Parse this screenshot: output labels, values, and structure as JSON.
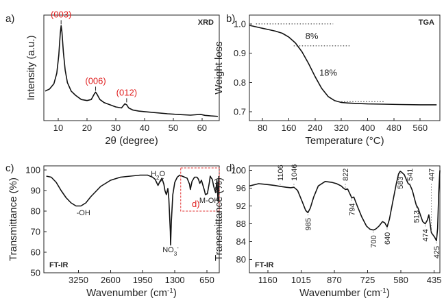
{
  "chart_data": [
    {
      "panel": "a)",
      "tag": "XRD",
      "type": "line",
      "xlabel": "2θ (degree)",
      "ylabel": "Intensity (a.u.)",
      "xlim": [
        5,
        66
      ],
      "xticks": [
        10,
        20,
        30,
        40,
        50,
        60
      ],
      "ylim": [
        0,
        1
      ],
      "x": [
        5.5,
        7,
        8.5,
        9.5,
        10.2,
        10.7,
        11.0,
        11.3,
        11.8,
        12.4,
        13.2,
        14.5,
        16,
        18,
        20,
        21.5,
        22.5,
        23.0,
        23.5,
        24.5,
        26,
        28,
        30,
        32,
        33.2,
        33.8,
        34.5,
        36,
        38,
        40,
        44,
        48,
        52,
        56,
        59.5,
        61,
        63,
        65.5
      ],
      "series": [
        {
          "values": [
            0.28,
            0.3,
            0.35,
            0.45,
            0.62,
            0.82,
            0.9,
            0.84,
            0.65,
            0.48,
            0.36,
            0.28,
            0.24,
            0.2,
            0.19,
            0.2,
            0.25,
            0.27,
            0.25,
            0.2,
            0.17,
            0.15,
            0.13,
            0.12,
            0.16,
            0.15,
            0.12,
            0.1,
            0.09,
            0.085,
            0.075,
            0.065,
            0.058,
            0.052,
            0.06,
            0.05,
            0.045,
            0.04
          ]
        }
      ],
      "annotations": [
        {
          "text": "(003)",
          "x": 11.0,
          "y": 0.9
        },
        {
          "text": "(006)",
          "x": 23.0,
          "y": 0.27
        },
        {
          "text": "(012)",
          "x": 33.8,
          "y": 0.16
        }
      ]
    },
    {
      "panel": "b)",
      "tag": "TGA",
      "type": "line",
      "xlabel": "Temperature (°C)",
      "ylabel": "Weight loss",
      "xlim": [
        40,
        620
      ],
      "xticks": [
        80,
        160,
        240,
        320,
        400,
        480,
        560
      ],
      "ylim": [
        0.67,
        1.03
      ],
      "yticks": [
        "1.0",
        "0.9",
        "0.8",
        "0.7"
      ],
      "ytick_values": [
        1.0,
        0.9,
        0.8,
        0.7
      ],
      "x": [
        40,
        60,
        80,
        100,
        120,
        140,
        160,
        180,
        200,
        220,
        240,
        260,
        280,
        300,
        320,
        340,
        360,
        400,
        450,
        500,
        560,
        610
      ],
      "series": [
        {
          "values": [
            0.995,
            0.99,
            0.985,
            0.98,
            0.975,
            0.968,
            0.955,
            0.935,
            0.905,
            0.865,
            0.82,
            0.78,
            0.752,
            0.738,
            0.732,
            0.73,
            0.729,
            0.727,
            0.726,
            0.725,
            0.724,
            0.724
          ]
        }
      ],
      "guides": [
        {
          "x1": 60,
          "x2": 295,
          "y": 1.0
        },
        {
          "x1": 175,
          "x2": 350,
          "y": 0.925
        },
        {
          "x1": 320,
          "x2": 450,
          "y": 0.735
        }
      ],
      "annotations": [
        {
          "text": "8%",
          "x": 230,
          "y": 0.96
        },
        {
          "text": "18%",
          "x": 280,
          "y": 0.835
        }
      ]
    },
    {
      "panel": "c)",
      "tag": "FT-IR",
      "type": "line",
      "xlabel": "Wavenumber (cm",
      "xlabel_sup": "-1",
      "xlabel_tail": ")",
      "ylabel": "Transmittance (%)",
      "xlim": [
        3950,
        400
      ],
      "xticks": [
        "3250",
        "2600",
        "1950",
        "1300",
        "650"
      ],
      "xtick_values": [
        3250,
        2600,
        1950,
        1300,
        650
      ],
      "ylim": [
        50,
        102
      ],
      "yticks": [
        50,
        60,
        70,
        80,
        90,
        100
      ],
      "x": [
        3900,
        3800,
        3700,
        3600,
        3500,
        3400,
        3300,
        3200,
        3100,
        3000,
        2800,
        2600,
        2400,
        2200,
        2000,
        1850,
        1750,
        1700,
        1640,
        1600,
        1560,
        1520,
        1500,
        1470,
        1440,
        1420,
        1390,
        1384,
        1370,
        1340,
        1300,
        1250,
        1200,
        1150,
        1100,
        1050,
        1000,
        985,
        950,
        900,
        850,
        822,
        794,
        760,
        700,
        680,
        640,
        600,
        583,
        560,
        541,
        513,
        474,
        447,
        425,
        410
      ],
      "series": [
        {
          "values": [
            97,
            96.5,
            94,
            90,
            86.5,
            84,
            82.5,
            82.5,
            84,
            87,
            92,
            95,
            96.5,
            97,
            97.5,
            97.5,
            96.5,
            95.5,
            92.5,
            94.5,
            96,
            93,
            90,
            88,
            91,
            86,
            70,
            63.5,
            75,
            88,
            94,
            96.5,
            97.5,
            97,
            96.5,
            96,
            93,
            90.5,
            94.5,
            96.5,
            96.5,
            95.5,
            93.5,
            95,
            90,
            88,
            88.5,
            94,
            97,
            96,
            95.5,
            92,
            89,
            95,
            85,
            97
          ]
        }
      ],
      "annotations": [
        {
          "text": "-OH",
          "x": 3150,
          "y": 78
        },
        {
          "text": "H",
          "sub": "2",
          "tail": "O",
          "x": 1640,
          "y": 97
        },
        {
          "text": "NO",
          "sub": "3",
          "sup": "-",
          "x": 1384,
          "y": 60
        },
        {
          "text": "M-OH",
          "x": 600,
          "y": 84
        }
      ],
      "inset_label": "d)",
      "inset_range": {
        "x1": 1180,
        "x2": 400,
        "y1": 80,
        "y2": 101
      }
    },
    {
      "panel": "d)",
      "tag": "FT-IR",
      "type": "line",
      "xlabel": "Wavenumber (cm",
      "xlabel_sup": "-1",
      "xlabel_tail": ")",
      "ylabel": "Transmittance (%)",
      "xlim": [
        1240,
        410
      ],
      "xticks": [
        "1160",
        "1015",
        "870",
        "725",
        "580",
        "435"
      ],
      "xtick_values": [
        1160,
        1015,
        870,
        725,
        580,
        435
      ],
      "ylim": [
        77,
        101
      ],
      "yticks": [
        80,
        84,
        88,
        92,
        96,
        100
      ],
      "x": [
        1240,
        1200,
        1160,
        1130,
        1106,
        1080,
        1060,
        1046,
        1030,
        1010,
        995,
        985,
        975,
        960,
        940,
        910,
        880,
        860,
        840,
        830,
        822,
        812,
        800,
        794,
        785,
        770,
        750,
        730,
        715,
        700,
        690,
        675,
        660,
        650,
        640,
        630,
        615,
        600,
        590,
        583,
        575,
        565,
        555,
        548,
        541,
        530,
        520,
        513,
        505,
        495,
        485,
        474,
        465,
        458,
        447,
        440,
        433,
        428,
        425,
        420,
        415,
        410
      ],
      "series": [
        {
          "values": [
            96.5,
            97,
            96.8,
            96.6,
            96.4,
            96.2,
            96.1,
            96.2,
            95.5,
            93,
            91,
            90.5,
            91.5,
            94,
            96.5,
            97.5,
            97.3,
            97,
            96.5,
            96,
            95.7,
            95.8,
            94.5,
            93.8,
            94,
            92,
            89.5,
            87.5,
            86.8,
            86.6,
            86.8,
            87.5,
            88.5,
            88.2,
            87.3,
            89,
            93,
            97,
            99.2,
            99.8,
            99.5,
            99,
            97.8,
            97,
            96.8,
            95.5,
            93.5,
            92.2,
            91.5,
            90,
            88.5,
            88,
            88.8,
            90,
            86,
            85.5,
            85,
            84.5,
            84.2,
            87,
            95,
            100
          ]
        }
      ],
      "peak_labels": [
        {
          "text": "1106",
          "x": 1106,
          "side": "above"
        },
        {
          "text": "1046",
          "x": 1046,
          "side": "above"
        },
        {
          "text": "985",
          "x": 985,
          "side": "below"
        },
        {
          "text": "822",
          "x": 822,
          "side": "above"
        },
        {
          "text": "794",
          "x": 794,
          "side": "below"
        },
        {
          "text": "700",
          "x": 700,
          "side": "below"
        },
        {
          "text": "640",
          "x": 640,
          "side": "below"
        },
        {
          "text": "583",
          "x": 583,
          "side": "below"
        },
        {
          "text": "541",
          "x": 541,
          "side": "above"
        },
        {
          "text": "513",
          "x": 513,
          "side": "below"
        },
        {
          "text": "474",
          "x": 474,
          "side": "below"
        },
        {
          "text": "447",
          "x": 447,
          "side": "above"
        },
        {
          "text": "425",
          "x": 425,
          "side": "below"
        }
      ]
    }
  ]
}
